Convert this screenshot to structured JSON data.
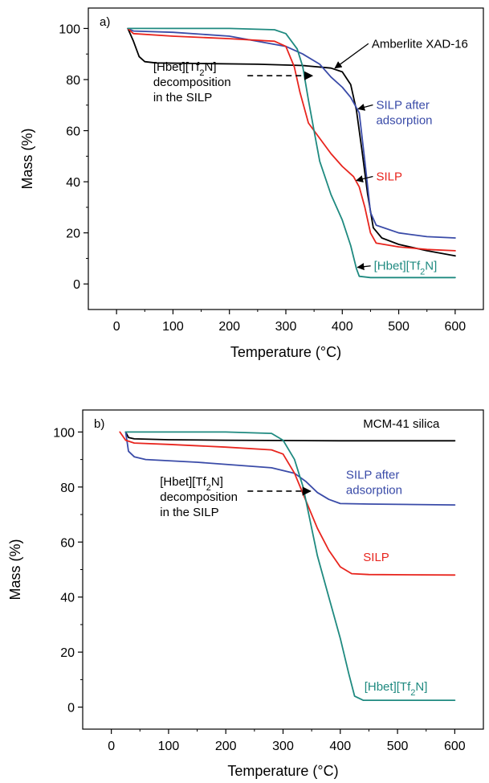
{
  "chart_data": [
    {
      "type": "line",
      "panel_label": "a)",
      "xlabel": "Temperature (°C)",
      "ylabel": "Mass (%)",
      "xlim": [
        -50,
        650
      ],
      "ylim": [
        -10,
        108
      ],
      "xticks": [
        0,
        100,
        200,
        300,
        400,
        500,
        600
      ],
      "yticks": [
        0,
        20,
        40,
        60,
        80,
        100
      ],
      "grid": false,
      "legend": "none",
      "series": [
        {
          "key": "amberlite",
          "color": "#000000",
          "points": [
            [
              20,
              100
            ],
            [
              30,
              95
            ],
            [
              40,
              89
            ],
            [
              50,
              87
            ],
            [
              70,
              86.5
            ],
            [
              150,
              86.3
            ],
            [
              250,
              86
            ],
            [
              330,
              85.5
            ],
            [
              380,
              84.5
            ],
            [
              400,
              83
            ],
            [
              415,
              78
            ],
            [
              425,
              68
            ],
            [
              435,
              52
            ],
            [
              445,
              35
            ],
            [
              455,
              22
            ],
            [
              470,
              18
            ],
            [
              500,
              15.5
            ],
            [
              550,
              13
            ],
            [
              600,
              11
            ]
          ]
        },
        {
          "key": "silp_after",
          "color": "#3a4ba8",
          "points": [
            [
              20,
              100
            ],
            [
              30,
              99
            ],
            [
              100,
              98.5
            ],
            [
              200,
              97
            ],
            [
              300,
              93
            ],
            [
              330,
              90
            ],
            [
              360,
              86
            ],
            [
              380,
              81
            ],
            [
              400,
              77
            ],
            [
              415,
              73
            ],
            [
              430,
              67
            ],
            [
              440,
              48
            ],
            [
              450,
              28
            ],
            [
              460,
              23
            ],
            [
              500,
              20
            ],
            [
              550,
              18.5
            ],
            [
              600,
              18
            ]
          ]
        },
        {
          "key": "silp",
          "color": "#e8251e",
          "points": [
            [
              20,
              100
            ],
            [
              30,
              98
            ],
            [
              100,
              97
            ],
            [
              200,
              96
            ],
            [
              280,
              95
            ],
            [
              300,
              93
            ],
            [
              315,
              85
            ],
            [
              325,
              75
            ],
            [
              340,
              63
            ],
            [
              360,
              57
            ],
            [
              380,
              51
            ],
            [
              400,
              46
            ],
            [
              420,
              42
            ],
            [
              430,
              38
            ],
            [
              440,
              30
            ],
            [
              450,
              20
            ],
            [
              460,
              16
            ],
            [
              500,
              14.5
            ],
            [
              550,
              13.5
            ],
            [
              600,
              13
            ]
          ]
        },
        {
          "key": "hbet",
          "color": "#1f8a80",
          "points": [
            [
              20,
              100
            ],
            [
              100,
              100
            ],
            [
              200,
              100
            ],
            [
              280,
              99.5
            ],
            [
              300,
              98
            ],
            [
              320,
              92
            ],
            [
              330,
              85
            ],
            [
              340,
              72
            ],
            [
              350,
              60
            ],
            [
              360,
              48
            ],
            [
              380,
              35
            ],
            [
              400,
              25
            ],
            [
              415,
              15
            ],
            [
              425,
              6
            ],
            [
              430,
              3
            ],
            [
              450,
              2.5
            ],
            [
              600,
              2.5
            ]
          ]
        }
      ],
      "annotations": [
        {
          "key": "amberlite",
          "lines": [
            "Amberlite XAD-16"
          ],
          "color": "#000000",
          "label_at": [
            452,
            92.5
          ],
          "arrow_to": [
            387,
            84.5
          ]
        },
        {
          "key": "silp_after",
          "lines": [
            "SILP after",
            "adsorption"
          ],
          "color": "#3a4ba8",
          "label_at": [
            460,
            68.5
          ],
          "arrow_to": [
            428,
            68.5
          ]
        },
        {
          "key": "silp",
          "lines": [
            "SILP"
          ],
          "color": "#e8251e",
          "label_at": [
            460,
            40.5
          ],
          "arrow_to": [
            425,
            40.5
          ]
        },
        {
          "key": "hbet",
          "lines": [
            "[Hbet][Tf",
            "N]"
          ],
          "sub": "2",
          "color": "#1f8a80",
          "label_at": [
            456,
            5.5
          ],
          "arrow_to": [
            427,
            6.5
          ]
        },
        {
          "key": "decomp",
          "lines": [
            "[Hbet][Tf",
            "N]"
          ],
          "sub": "2",
          "extra_lines": [
            "decomposition",
            "in the SILP"
          ],
          "color": "#000000",
          "label_at": [
            65,
            83.5
          ],
          "dashed_arrow_from": [
            232,
            81.5
          ],
          "dashed_arrow_to": [
            347,
            81.5
          ]
        }
      ]
    },
    {
      "type": "line",
      "panel_label": "b)",
      "xlabel": "Temperature (°C)",
      "ylabel": "Mass (%)",
      "xlim": [
        -50,
        650
      ],
      "ylim": [
        -8,
        108
      ],
      "xticks": [
        0,
        100,
        200,
        300,
        400,
        500,
        600
      ],
      "yticks": [
        0,
        20,
        40,
        60,
        80,
        100
      ],
      "grid": false,
      "legend": "none",
      "series": [
        {
          "key": "mcm41",
          "color": "#000000",
          "points": [
            [
              25,
              100
            ],
            [
              30,
              98
            ],
            [
              40,
              97.5
            ],
            [
              100,
              97.2
            ],
            [
              200,
              97
            ],
            [
              400,
              96.8
            ],
            [
              600,
              96.8
            ]
          ]
        },
        {
          "key": "silp_after",
          "color": "#3a4ba8",
          "points": [
            [
              25,
              100
            ],
            [
              30,
              93
            ],
            [
              40,
              91
            ],
            [
              60,
              90
            ],
            [
              150,
              89
            ],
            [
              280,
              87
            ],
            [
              320,
              85
            ],
            [
              340,
              82
            ],
            [
              360,
              78
            ],
            [
              380,
              75.5
            ],
            [
              400,
              74
            ],
            [
              450,
              73.8
            ],
            [
              600,
              73.5
            ]
          ]
        },
        {
          "key": "silp",
          "color": "#e8251e",
          "points": [
            [
              15,
              100
            ],
            [
              25,
              97
            ],
            [
              40,
              96
            ],
            [
              100,
              95.5
            ],
            [
              200,
              94.5
            ],
            [
              280,
              93.5
            ],
            [
              300,
              92
            ],
            [
              320,
              85
            ],
            [
              340,
              75
            ],
            [
              360,
              65
            ],
            [
              380,
              57
            ],
            [
              400,
              51
            ],
            [
              420,
              48.5
            ],
            [
              450,
              48.2
            ],
            [
              600,
              48
            ]
          ]
        },
        {
          "key": "hbet",
          "color": "#1f8a80",
          "points": [
            [
              25,
              100
            ],
            [
              100,
              100
            ],
            [
              200,
              100
            ],
            [
              280,
              99.5
            ],
            [
              300,
              97
            ],
            [
              320,
              90
            ],
            [
              335,
              80
            ],
            [
              345,
              70
            ],
            [
              360,
              55
            ],
            [
              380,
              40
            ],
            [
              400,
              25
            ],
            [
              415,
              12
            ],
            [
              425,
              4
            ],
            [
              440,
              2.5
            ],
            [
              600,
              2.5
            ]
          ]
        }
      ],
      "annotations": [
        {
          "key": "mcm41",
          "lines": [
            "MCM-41 silica"
          ],
          "color": "#000000",
          "label_at": [
            440,
            101.5
          ]
        },
        {
          "key": "silp_after",
          "lines": [
            "SILP after",
            "adsorption"
          ],
          "color": "#3a4ba8",
          "label_at": [
            410,
            83
          ]
        },
        {
          "key": "silp",
          "lines": [
            "SILP"
          ],
          "color": "#e8251e",
          "label_at": [
            440,
            53
          ]
        },
        {
          "key": "hbet",
          "lines": [
            "[Hbet][Tf",
            "N]"
          ],
          "sub": "2",
          "color": "#1f8a80",
          "label_at": [
            442,
            6
          ]
        },
        {
          "key": "decomp",
          "lines": [
            "[Hbet][Tf",
            "N]"
          ],
          "sub": "2",
          "extra_lines": [
            "decomposition",
            "in the SILP"
          ],
          "color": "#000000",
          "label_at": [
            85,
            80.5
          ],
          "dashed_arrow_from": [
            238,
            78.5
          ],
          "dashed_arrow_to": [
            348,
            78.5
          ]
        }
      ]
    }
  ]
}
